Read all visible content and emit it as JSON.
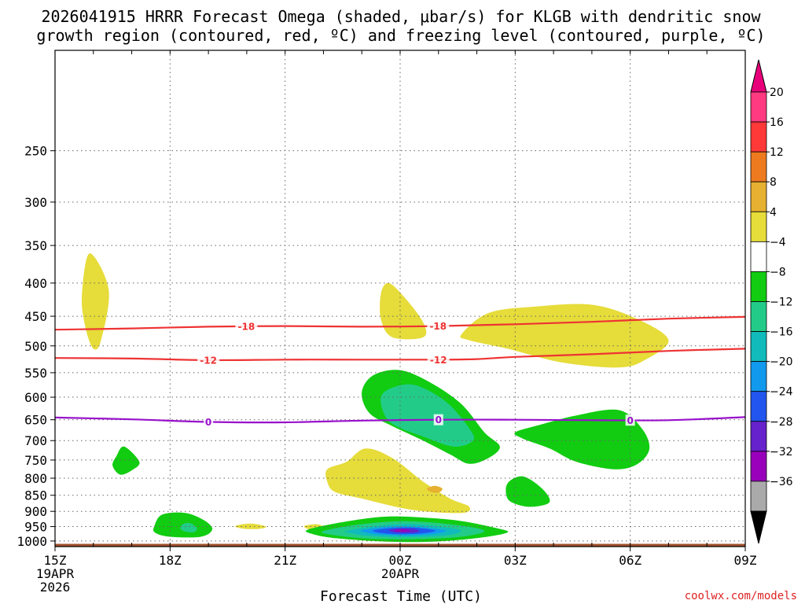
{
  "chart_data": {
    "type": "contour",
    "title_line1": "2026041915 HRRR Forecast Omega (shaded, μbar/s) for KLGB with dendritic snow",
    "title_line2": "growth region (contoured, red, ºC) and freezing level (contoured, purple, ºC)",
    "xlabel": "Forecast Time (UTC)",
    "credit": "coolwx.com/models",
    "x_hours_range": [
      0,
      18
    ],
    "y_pressure_range": [
      1020,
      175
    ],
    "x_ticks": [
      {
        "h": 0,
        "lines": [
          "15Z",
          "19APR",
          "2026"
        ]
      },
      {
        "h": 3,
        "lines": [
          "18Z"
        ]
      },
      {
        "h": 6,
        "lines": [
          "21Z"
        ]
      },
      {
        "h": 9,
        "lines": [
          "00Z",
          "20APR"
        ]
      },
      {
        "h": 12,
        "lines": [
          "03Z"
        ]
      },
      {
        "h": 15,
        "lines": [
          "06Z"
        ]
      },
      {
        "h": 18,
        "lines": [
          "09Z"
        ]
      }
    ],
    "y_ticks": [
      250,
      300,
      350,
      400,
      450,
      500,
      550,
      600,
      650,
      700,
      750,
      800,
      850,
      900,
      950,
      1000
    ],
    "colorbar": {
      "labels": [
        "20",
        "16",
        "12",
        "8",
        "4",
        "−4",
        "−8",
        "−12",
        "−16",
        "−20",
        "−24",
        "−28",
        "−32",
        "−36"
      ],
      "colors": [
        "#ff3a80",
        "#ff3838",
        "#ee7a20",
        "#e6b030",
        "#e6dc3a",
        "#ffffff",
        "#11cc11",
        "#22cc88",
        "#11bbbb",
        "#1199ee",
        "#2255ee",
        "#6622cc",
        "#9900bb",
        "#aaaaaa"
      ],
      "top_triangle_color": "#e8007a",
      "bottom_triangle_color": "#000000"
    },
    "contours": [
      {
        "name": "dgz-minus18",
        "color": "#ee3333",
        "label": "-18",
        "label_hours": [
          4.99,
          9.99
        ],
        "points": [
          [
            0,
            472
          ],
          [
            2,
            470
          ],
          [
            4,
            467
          ],
          [
            6,
            466
          ],
          [
            8,
            467
          ],
          [
            10,
            466
          ],
          [
            12,
            463
          ],
          [
            14,
            459
          ],
          [
            16,
            454
          ],
          [
            18,
            451
          ]
        ]
      },
      {
        "name": "dgz-minus12",
        "color": "#ee3333",
        "label": "-12",
        "label_hours": [
          4.0,
          10.0
        ],
        "points": [
          [
            0,
            522
          ],
          [
            2,
            523
          ],
          [
            4,
            526
          ],
          [
            6,
            525
          ],
          [
            8,
            525
          ],
          [
            10,
            525
          ],
          [
            11,
            524
          ],
          [
            12,
            520
          ],
          [
            14,
            515
          ],
          [
            16,
            509
          ],
          [
            18,
            505
          ]
        ]
      },
      {
        "name": "freezing-level-0",
        "color": "#9911cc",
        "label": "0",
        "label_hours": [
          4.0,
          10.0,
          15.0
        ],
        "points": [
          [
            0,
            645
          ],
          [
            2,
            649
          ],
          [
            4,
            655
          ],
          [
            6,
            656
          ],
          [
            8,
            652
          ],
          [
            10,
            650
          ],
          [
            12,
            650
          ],
          [
            14,
            651
          ],
          [
            16,
            651
          ],
          [
            18,
            644
          ]
        ]
      }
    ],
    "omega_regions": [
      {
        "level": "4",
        "color": "#e6dc3a",
        "points": [
          [
            0.9,
            360
          ],
          [
            1.4,
            410
          ],
          [
            1.2,
            490
          ],
          [
            1.0,
            505
          ],
          [
            0.8,
            470
          ],
          [
            0.7,
            420
          ]
        ]
      },
      {
        "level": "4",
        "color": "#e6dc3a",
        "points": [
          [
            8.5,
            415
          ],
          [
            8.7,
            400
          ],
          [
            9.1,
            420
          ],
          [
            9.6,
            460
          ],
          [
            9.6,
            485
          ],
          [
            8.8,
            485
          ],
          [
            8.5,
            455
          ]
        ]
      },
      {
        "level": "4",
        "color": "#e6dc3a",
        "points": [
          [
            10.6,
            480
          ],
          [
            11.3,
            445
          ],
          [
            12.5,
            435
          ],
          [
            14.0,
            432
          ],
          [
            15.2,
            455
          ],
          [
            16.0,
            490
          ],
          [
            15.4,
            525
          ],
          [
            14.7,
            540
          ],
          [
            13.2,
            530
          ],
          [
            11.8,
            505
          ],
          [
            10.8,
            490
          ]
        ]
      },
      {
        "level": "4",
        "color": "#e6dc3a",
        "points": [
          [
            7.1,
            775
          ],
          [
            7.6,
            755
          ],
          [
            8.1,
            720
          ],
          [
            8.8,
            745
          ],
          [
            9.6,
            810
          ],
          [
            10.3,
            860
          ],
          [
            10.8,
            885
          ],
          [
            10.6,
            905
          ],
          [
            9.3,
            895
          ],
          [
            8.0,
            860
          ],
          [
            7.3,
            840
          ],
          [
            7.1,
            810
          ]
        ]
      },
      {
        "level": "8",
        "color": "#e6b030",
        "points": [
          [
            9.9,
            822
          ],
          [
            10.1,
            830
          ],
          [
            10.0,
            842
          ],
          [
            9.8,
            840
          ],
          [
            9.7,
            830
          ]
        ]
      },
      {
        "level": "4",
        "color": "#e6dc3a",
        "points": [
          [
            4.7,
            948
          ],
          [
            5.1,
            940
          ],
          [
            5.5,
            950
          ],
          [
            5.3,
            958
          ],
          [
            4.9,
            957
          ]
        ]
      },
      {
        "level": "4",
        "color": "#e6dc3a",
        "points": [
          [
            6.5,
            948
          ],
          [
            6.8,
            942
          ],
          [
            7.0,
            950
          ],
          [
            6.9,
            962
          ],
          [
            6.6,
            958
          ]
        ]
      },
      {
        "level": "-4",
        "color": "#11cc11",
        "points": [
          [
            8.0,
            590
          ],
          [
            8.3,
            555
          ],
          [
            9.0,
            545
          ],
          [
            9.8,
            570
          ],
          [
            10.6,
            615
          ],
          [
            11.2,
            680
          ],
          [
            11.6,
            715
          ],
          [
            11.3,
            745
          ],
          [
            10.8,
            760
          ],
          [
            10.3,
            735
          ],
          [
            9.6,
            700
          ],
          [
            8.8,
            665
          ],
          [
            8.2,
            635
          ]
        ]
      },
      {
        "level": "-8",
        "color": "#22cc88",
        "points": [
          [
            8.5,
            600
          ],
          [
            8.8,
            580
          ],
          [
            9.4,
            575
          ],
          [
            10.2,
            610
          ],
          [
            10.8,
            670
          ],
          [
            10.9,
            700
          ],
          [
            10.4,
            715
          ],
          [
            9.6,
            690
          ],
          [
            8.9,
            665
          ],
          [
            8.6,
            640
          ]
        ]
      },
      {
        "level": "-4",
        "color": "#11cc11",
        "points": [
          [
            12.0,
            680
          ],
          [
            12.6,
            663
          ],
          [
            13.6,
            640
          ],
          [
            14.7,
            628
          ],
          [
            15.3,
            670
          ],
          [
            15.5,
            720
          ],
          [
            15.2,
            760
          ],
          [
            14.6,
            775
          ],
          [
            13.6,
            755
          ],
          [
            12.9,
            720
          ],
          [
            12.2,
            695
          ]
        ]
      },
      {
        "level": "-4",
        "color": "#11cc11",
        "points": [
          [
            1.6,
            740
          ],
          [
            1.8,
            715
          ],
          [
            2.2,
            755
          ],
          [
            2.0,
            778
          ],
          [
            1.7,
            790
          ],
          [
            1.5,
            765
          ]
        ]
      },
      {
        "level": "-4",
        "color": "#11cc11",
        "points": [
          [
            2.8,
            910
          ],
          [
            2.6,
            945
          ],
          [
            2.6,
            970
          ],
          [
            3.0,
            985
          ],
          [
            3.8,
            985
          ],
          [
            4.1,
            960
          ],
          [
            3.9,
            930
          ],
          [
            3.4,
            905
          ]
        ]
      },
      {
        "level": "-8",
        "color": "#22cc88",
        "points": [
          [
            3.3,
            945
          ],
          [
            3.5,
            938
          ],
          [
            3.7,
            955
          ],
          [
            3.6,
            970
          ],
          [
            3.3,
            962
          ]
        ]
      },
      {
        "level": "-4",
        "color": "#11cc11",
        "points": [
          [
            11.8,
            815
          ],
          [
            12.2,
            795
          ],
          [
            12.7,
            830
          ],
          [
            12.9,
            870
          ],
          [
            12.5,
            885
          ],
          [
            12.1,
            880
          ],
          [
            11.8,
            860
          ]
        ]
      },
      {
        "level": "-4",
        "color": "#11cc11",
        "points": [
          [
            6.6,
            960
          ],
          [
            7.5,
            935
          ],
          [
            8.5,
            918
          ],
          [
            9.3,
            918
          ],
          [
            10.5,
            930
          ],
          [
            11.5,
            955
          ],
          [
            11.8,
            970
          ],
          [
            11.1,
            988
          ],
          [
            9.9,
            1002
          ],
          [
            8.6,
            1002
          ],
          [
            7.3,
            990
          ],
          [
            6.7,
            975
          ]
        ]
      },
      {
        "level": "-8",
        "color": "#22cc88",
        "points": [
          [
            7.0,
            965
          ],
          [
            8.0,
            942
          ],
          [
            9.2,
            932
          ],
          [
            10.5,
            945
          ],
          [
            11.2,
            965
          ],
          [
            10.6,
            985
          ],
          [
            9.5,
            993
          ],
          [
            8.2,
            992
          ],
          [
            7.2,
            978
          ]
        ]
      },
      {
        "level": "-12",
        "color": "#11bbbb",
        "points": [
          [
            7.6,
            965
          ],
          [
            8.4,
            948
          ],
          [
            9.3,
            942
          ],
          [
            10.2,
            953
          ],
          [
            10.6,
            965
          ],
          [
            10.2,
            980
          ],
          [
            9.2,
            986
          ],
          [
            8.2,
            982
          ],
          [
            7.7,
            972
          ]
        ]
      },
      {
        "level": "-16",
        "color": "#1199ee",
        "points": [
          [
            8.0,
            963
          ],
          [
            8.6,
            952
          ],
          [
            9.3,
            950
          ],
          [
            9.9,
            957
          ],
          [
            10.2,
            965
          ],
          [
            9.8,
            976
          ],
          [
            9.2,
            980
          ],
          [
            8.5,
            977
          ],
          [
            8.1,
            970
          ]
        ]
      },
      {
        "level": "-20",
        "color": "#2255ee",
        "points": [
          [
            8.3,
            963
          ],
          [
            8.8,
            955
          ],
          [
            9.3,
            953
          ],
          [
            9.8,
            960
          ],
          [
            9.9,
            966
          ],
          [
            9.5,
            974
          ],
          [
            9.0,
            976
          ],
          [
            8.5,
            972
          ]
        ]
      },
      {
        "level": "-24",
        "color": "#6622cc",
        "points": [
          [
            8.7,
            962
          ],
          [
            9.0,
            957
          ],
          [
            9.35,
            958
          ],
          [
            9.5,
            965
          ],
          [
            9.3,
            971
          ],
          [
            8.9,
            970
          ]
        ]
      },
      {
        "level": "-28",
        "color": "#9900bb",
        "points": [
          [
            8.85,
            962
          ],
          [
            9.0,
            959
          ],
          [
            9.2,
            961
          ],
          [
            9.25,
            965
          ],
          [
            9.05,
            968
          ],
          [
            8.9,
            967
          ]
        ]
      }
    ],
    "ground": {
      "color": "#a0522d",
      "from_pressure": 1010
    }
  }
}
